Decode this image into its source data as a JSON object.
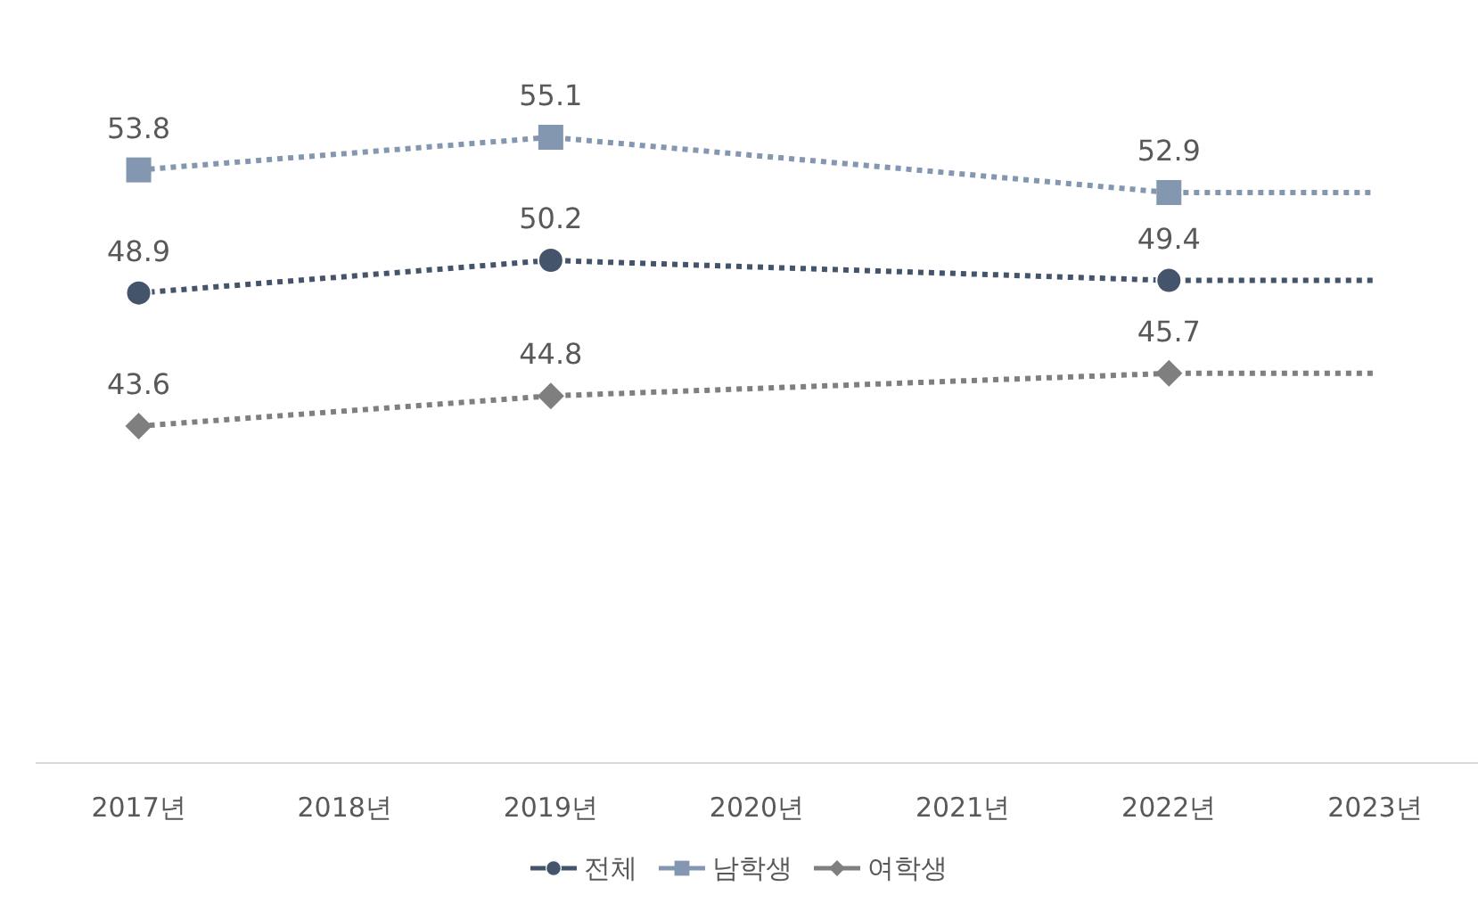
{
  "chart_data": {
    "type": "line",
    "categories": [
      "2017년",
      "2018년",
      "2019년",
      "2020년",
      "2021년",
      "2022년",
      "2023년"
    ],
    "legend": "bottom",
    "grid": false,
    "line_style": "dotted",
    "series": [
      {
        "name": "전체",
        "color": "#44546a",
        "marker": "circle",
        "values": [
          48.9,
          null,
          50.2,
          null,
          null,
          49.4,
          49.4
        ],
        "value_labels": [
          "48.9",
          null,
          "50.2",
          null,
          null,
          "49.4",
          null
        ]
      },
      {
        "name": "남학생",
        "color": "#8497b0",
        "marker": "square",
        "values": [
          53.8,
          null,
          55.1,
          null,
          null,
          52.9,
          52.9
        ],
        "value_labels": [
          "53.8",
          null,
          "55.1",
          null,
          null,
          "52.9",
          null
        ]
      },
      {
        "name": "여학생",
        "color": "#7f7f7f",
        "marker": "diamond",
        "values": [
          43.6,
          null,
          44.8,
          null,
          null,
          45.7,
          45.7
        ],
        "value_labels": [
          "43.6",
          null,
          "44.8",
          null,
          null,
          "45.7",
          null
        ]
      }
    ]
  }
}
